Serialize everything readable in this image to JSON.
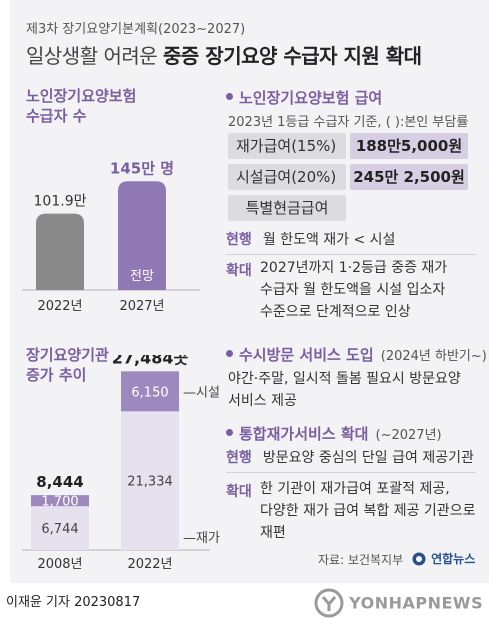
{
  "header": {
    "subtitle": "제3차 장기요양기본계획(2023~2027)",
    "title_prefix": "일상생활 어려운",
    "title_bold": "중증 장기요양 수급자 지원 확대"
  },
  "recipients": {
    "heading_line1": "노인장기요양보험",
    "heading_line2": "수급자 수",
    "projection_label": "전망"
  },
  "facilities": {
    "heading_line1": "장기요양기관",
    "heading_line2": "증가 추이"
  },
  "chart_data": [
    {
      "type": "bar",
      "title": "노인장기요양보험 수급자 수",
      "categories": [
        "2022년",
        "2027년"
      ],
      "values": [
        101.9,
        145
      ],
      "value_labels": [
        "101.9만",
        "145만 명"
      ],
      "unit": "만 명",
      "colors": [
        "#8a8a8a",
        "#8f78b3"
      ]
    },
    {
      "type": "bar",
      "stacked": true,
      "title": "장기요양기관 증가 추이",
      "categories": [
        "2008년",
        "2022년"
      ],
      "totals": [
        8444,
        27484
      ],
      "total_labels": [
        "8,444",
        "27,484곳"
      ],
      "series": [
        {
          "name": "재가",
          "values": [
            6744,
            21334
          ],
          "labels": [
            "6,744",
            "21,334"
          ],
          "color": "#e5e1ee"
        },
        {
          "name": "시설",
          "values": [
            1700,
            6150
          ],
          "labels": [
            "1,700",
            "6,150"
          ],
          "color": "#9d89bd"
        }
      ]
    }
  ],
  "benefits": {
    "heading": "노인장기요양보험 급여",
    "note": "2023년 1등급 수급자 기준, ( ):본인 부담률",
    "rows": [
      {
        "label": "재가급여(15%)",
        "value": "188만5,000원"
      },
      {
        "label": "시설급여(20%)",
        "value": "245만 2,500원"
      },
      {
        "label": "특별현금급여"
      }
    ],
    "current_tag": "현행",
    "current_text": "월 한도액 재가 < 시설",
    "expand_tag": "확대",
    "expand_lines": [
      "2027년까지 1·2등급 중증 재가",
      "수급자 월 한도액을 시설 입소자",
      "수준으로 단계적으로 인상"
    ]
  },
  "visit_service": {
    "heading": "수시방문 서비스 도입",
    "period": "(2024년 하반기~)",
    "lines": [
      "야간·주말, 일시적 돌봄 필요시 방문요양",
      "서비스 제공"
    ]
  },
  "integrated_service": {
    "heading": "통합재가서비스 확대",
    "period": "(~2027년)",
    "current_tag": "현행",
    "current_text": "방문요양 중심의 단일 급여 제공기관",
    "expand_tag": "확대",
    "expand_lines": [
      "한 기관이 재가급여 포괄적 제공,",
      "다양한 재가 급여 복합 제공 기관으로",
      "재편"
    ]
  },
  "source": "자료: 보건복지부",
  "source_logo": "연합뉴스",
  "byline": "이재윤 기자  20230817",
  "watermark": "YONHAPNEWS"
}
